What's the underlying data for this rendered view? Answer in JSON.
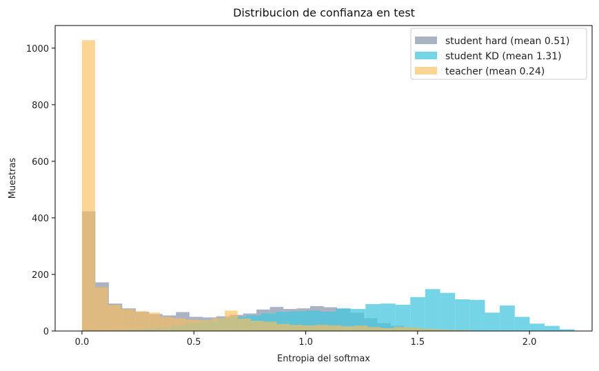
{
  "chart_data": {
    "type": "histogram",
    "title": "Distribucion de confianza en test",
    "xlabel": "Entropia del softmax",
    "ylabel": "Muestras",
    "xlim": [
      -0.12,
      2.28
    ],
    "ylim": [
      0,
      1080
    ],
    "xticks": [
      {
        "value": 0.0,
        "label": "0.0"
      },
      {
        "value": 0.5,
        "label": "0.5"
      },
      {
        "value": 1.0,
        "label": "1.0"
      },
      {
        "value": 1.5,
        "label": "1.5"
      },
      {
        "value": 2.0,
        "label": "2.0"
      }
    ],
    "yticks": [
      {
        "value": 0,
        "label": "0"
      },
      {
        "value": 200,
        "label": "200"
      },
      {
        "value": 400,
        "label": "400"
      },
      {
        "value": 600,
        "label": "600"
      },
      {
        "value": 800,
        "label": "800"
      },
      {
        "value": 1000,
        "label": "1000"
      }
    ],
    "grid": false,
    "legend_position": "top-right",
    "series": [
      {
        "name": "student hard (mean 0.51)",
        "color": "#8c99ad",
        "opacity": 0.75,
        "bin_start": 0.0,
        "bin_width": 0.06,
        "counts": [
          423,
          172,
          97,
          80,
          68,
          60,
          55,
          67,
          50,
          48,
          52,
          57,
          62,
          76,
          85,
          78,
          80,
          88,
          84,
          79,
          65,
          45,
          28,
          18,
          12,
          8,
          5,
          3,
          2,
          1
        ]
      },
      {
        "name": "student KD (mean 1.31)",
        "color": "#47c7dd",
        "opacity": 0.75,
        "bin_start": 0.0,
        "bin_width": 0.0667,
        "counts": [
          2,
          1,
          3,
          5,
          8,
          12,
          20,
          28,
          35,
          45,
          50,
          55,
          62,
          68,
          70,
          72,
          68,
          80,
          78,
          95,
          97,
          93,
          120,
          148,
          135,
          112,
          110,
          65,
          90,
          50,
          26,
          18,
          6
        ]
      },
      {
        "name": "teacher (mean 0.24)",
        "color": "#fbbf5c",
        "opacity": 0.65,
        "bin_start": 0.0,
        "bin_width": 0.058,
        "counts": [
          1028,
          155,
          92,
          77,
          70,
          65,
          50,
          45,
          40,
          38,
          45,
          72,
          44,
          36,
          33,
          25,
          22,
          20,
          22,
          20,
          17,
          19,
          14,
          10,
          14,
          12,
          8,
          6,
          4,
          3
        ]
      }
    ]
  }
}
